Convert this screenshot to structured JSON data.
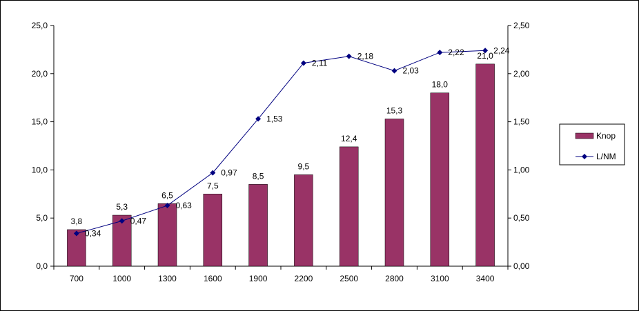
{
  "colors": {
    "bar": "#993366",
    "line": "#000080",
    "axis": "#000000"
  },
  "chart_data": {
    "type": "bar",
    "categories": [
      "700",
      "1000",
      "1300",
      "1600",
      "1900",
      "2200",
      "2500",
      "2800",
      "3100",
      "3400"
    ],
    "series": [
      {
        "name": "Knop",
        "type": "bar",
        "axis": "left",
        "values": [
          3.8,
          5.3,
          6.5,
          7.5,
          8.5,
          9.5,
          12.4,
          15.3,
          18.0,
          21.0
        ],
        "labels": [
          "3,8",
          "5,3",
          "6,5",
          "7,5",
          "8,5",
          "9,5",
          "12,4",
          "15,3",
          "18,0",
          "21,0"
        ]
      },
      {
        "name": "L/NM",
        "type": "line",
        "axis": "right",
        "values": [
          0.34,
          0.47,
          0.63,
          0.97,
          1.53,
          2.11,
          2.18,
          2.03,
          2.22,
          2.24
        ],
        "labels": [
          "0,34",
          "0,47",
          "0,63",
          "0,97",
          "1,53",
          "2,11",
          "2,18",
          "2,03",
          "2,22",
          "2,24"
        ]
      }
    ],
    "y_left": {
      "min": 0,
      "max": 25,
      "ticks": [
        "0,0",
        "5,0",
        "10,0",
        "15,0",
        "20,0",
        "25,0"
      ]
    },
    "y_right": {
      "min": 0,
      "max": 2.5,
      "ticks": [
        "0,00",
        "0,50",
        "1,00",
        "1,50",
        "2,00",
        "2,50"
      ]
    },
    "grid": false,
    "legend_position": "right"
  }
}
